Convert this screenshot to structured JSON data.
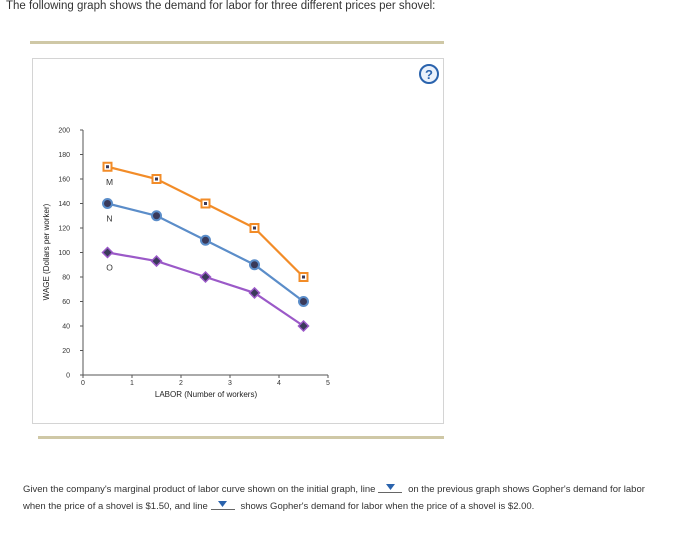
{
  "intro": "The following graph shows the demand for labor for three different prices per shovel:",
  "help_icon": "?",
  "bottom": {
    "part1": "Given the company's marginal product of labor curve shown on the initial graph, line",
    "part2": "on the previous graph shows Gopher's demand for labor",
    "part3": "when the price of a shovel is $1.50, and line",
    "part4": "shows Gopher's demand for labor when the price of a shovel is $2.00.",
    "dropdown_icon": "chevron-down-icon"
  },
  "colors": {
    "orange": "#f28c28",
    "blue": "#5b8dc9",
    "purple": "#9b59c8",
    "point_fill": "#3a3a5a",
    "accent": "#2a63ad"
  },
  "chart_data": {
    "type": "line",
    "xlabel": "LABOR (Number of workers)",
    "ylabel": "WAGE (Dollars per worker)",
    "xlim": [
      0,
      5
    ],
    "ylim": [
      0,
      200
    ],
    "x_ticks": [
      "0",
      "1",
      "2",
      "3",
      "4",
      "5"
    ],
    "y_ticks": [
      "0",
      "20",
      "40",
      "60",
      "80",
      "100",
      "120",
      "140",
      "160",
      "180",
      "200"
    ],
    "series": [
      {
        "label": "M",
        "color": "#f28c28",
        "marker": "square",
        "x": [
          0.5,
          1.5,
          2.5,
          3.5,
          4.5
        ],
        "y": [
          170,
          160,
          140,
          120,
          80
        ]
      },
      {
        "label": "N",
        "color": "#5b8dc9",
        "marker": "circle",
        "x": [
          0.5,
          1.5,
          2.5,
          3.5,
          4.5
        ],
        "y": [
          140,
          130,
          110,
          90,
          60
        ]
      },
      {
        "label": "O",
        "color": "#9b59c8",
        "marker": "diamond",
        "x": [
          0.5,
          1.5,
          2.5,
          3.5,
          4.5
        ],
        "y": [
          100,
          93,
          80,
          67,
          40
        ]
      }
    ]
  }
}
